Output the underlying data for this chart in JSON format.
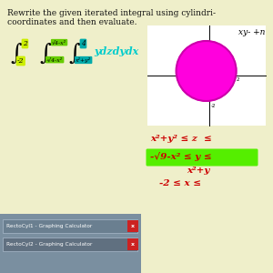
{
  "bg_color": "#efefca",
  "title_line1": "Rewrite the given iterated integral using cylindri-",
  "title_line2": "coordinates and then evaluate.",
  "title_fontsize": 6.5,
  "title_color": "#111111",
  "integral_text": "ydzdydx",
  "integral_color": "#00cccc",
  "integral_fontsize": 8,
  "int1_top": "2",
  "int1_bot": "-2",
  "int1_top_color": "#ccee00",
  "int1_bot_color": "#ccee00",
  "int2_top": "4-x²",
  "int2_bot": "4-x²",
  "int2_top_color": "#66cc00",
  "int2_bot_color": "#66cc00",
  "int3_top": "4",
  "int3_bot": "x²+y²",
  "int3_top_color": "#00aaaa",
  "int3_bot_color": "#00aaaa",
  "red_text1": "x²+y² ≤ z  ≤",
  "red_text2": "-√9-x² ≤ y ≤",
  "red_text3": "x²+y",
  "red_text4": "-2 ≤ x ≤",
  "red_color": "#cc0000",
  "green_color": "#55ee00",
  "circle_color": "#ff00dd",
  "circle_edge_color": "#cc00aa",
  "white": "#ffffff",
  "taskbar_bg": "#7a8fa0",
  "taskbar_row1_bg": "#6a7f90",
  "taskbar_row2_bg": "#607080",
  "taskbar_text1": "RectoCyl1 - Graphing Calculator",
  "taskbar_text2": "RectoCyl2 - Graphing Calculator",
  "taskbar_x_color": "#cc2222",
  "xy_label": "xy- +n"
}
